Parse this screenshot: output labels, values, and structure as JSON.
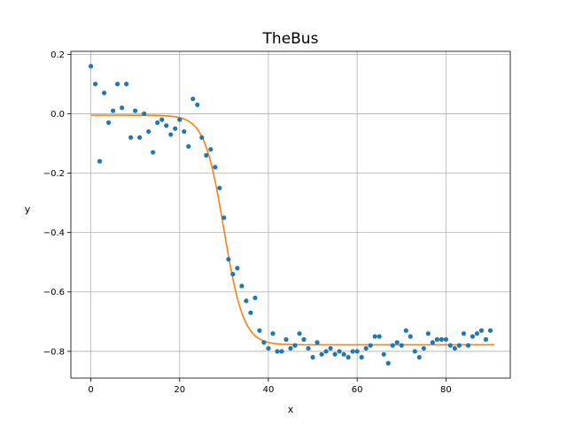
{
  "chart_data": {
    "type": "scatter",
    "title": "TheBus",
    "xlabel": "x",
    "ylabel": "y",
    "xlim": [
      -4.5,
      94.5
    ],
    "ylim": [
      -0.89,
      0.21
    ],
    "xticks": [
      0,
      20,
      40,
      60,
      80
    ],
    "yticks": [
      0.2,
      0.0,
      -0.2,
      -0.4,
      -0.6,
      -0.8
    ],
    "xtick_labels": [
      "0",
      "20",
      "40",
      "60",
      "80"
    ],
    "ytick_labels": [
      "0.2",
      "0.0",
      "−0.2",
      "−0.4",
      "−0.6",
      "−0.8"
    ],
    "grid": true,
    "series": [
      {
        "kind": "points",
        "color": "#1f77b4",
        "x": [
          0,
          1,
          2,
          3,
          4,
          5,
          6,
          7,
          8,
          9,
          10,
          11,
          12,
          13,
          14,
          15,
          16,
          17,
          18,
          19,
          20,
          21,
          22,
          23,
          24,
          25,
          26,
          27,
          28,
          29,
          30,
          31,
          32,
          33,
          34,
          35,
          36,
          37,
          38,
          39,
          40,
          41,
          42,
          43,
          44,
          45,
          46,
          47,
          48,
          49,
          50,
          51,
          52,
          53,
          54,
          55,
          56,
          57,
          58,
          59,
          60,
          61,
          62,
          63,
          64,
          65,
          66,
          67,
          68,
          69,
          70,
          71,
          72,
          73,
          74,
          75,
          76,
          77,
          78,
          79,
          80,
          81,
          82,
          83,
          84,
          85,
          86,
          87,
          88,
          89,
          90
        ],
        "y": [
          0.16,
          0.1,
          -0.16,
          0.07,
          -0.03,
          0.01,
          0.1,
          0.02,
          0.1,
          -0.08,
          0.01,
          -0.08,
          0.0,
          -0.06,
          -0.13,
          -0.03,
          -0.02,
          -0.04,
          -0.07,
          -0.05,
          -0.02,
          -0.06,
          -0.11,
          0.05,
          0.03,
          -0.08,
          -0.14,
          -0.12,
          -0.18,
          -0.25,
          -0.35,
          -0.49,
          -0.54,
          -0.52,
          -0.58,
          -0.63,
          -0.67,
          -0.62,
          -0.73,
          -0.77,
          -0.79,
          -0.74,
          -0.8,
          -0.8,
          -0.76,
          -0.79,
          -0.78,
          -0.74,
          -0.76,
          -0.79,
          -0.82,
          -0.77,
          -0.81,
          -0.8,
          -0.79,
          -0.81,
          -0.8,
          -0.81,
          -0.82,
          -0.8,
          -0.8,
          -0.82,
          -0.79,
          -0.78,
          -0.75,
          -0.75,
          -0.81,
          -0.84,
          -0.78,
          -0.77,
          -0.78,
          -0.73,
          -0.75,
          -0.8,
          -0.82,
          -0.79,
          -0.74,
          -0.77,
          -0.76,
          -0.76,
          -0.76,
          -0.78,
          -0.79,
          -0.78,
          -0.74,
          -0.78,
          -0.75,
          -0.74,
          -0.73,
          -0.76,
          -0.73
        ]
      },
      {
        "kind": "fit-line",
        "color": "#ff7f0e",
        "model": "logistic",
        "upper": -0.005,
        "lower": -0.778,
        "midpoint": 30,
        "scale": 2.2,
        "x_start": 0,
        "x_end": 91
      }
    ]
  }
}
